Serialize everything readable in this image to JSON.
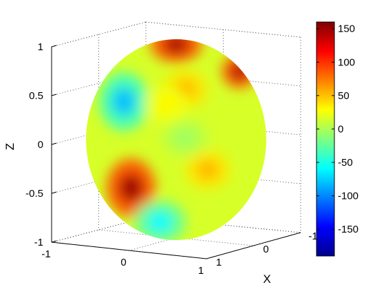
{
  "chart_data": {
    "type": "surface",
    "title": "",
    "xlabel": "X",
    "ylabel": "",
    "zlabel": "Z",
    "z_axis": {
      "range": [
        -1,
        1
      ],
      "ticks": [
        {
          "value": 1,
          "label": "1"
        },
        {
          "value": 0.5,
          "label": "0.5"
        },
        {
          "value": 0,
          "label": "0"
        },
        {
          "value": -0.5,
          "label": "-0.5"
        },
        {
          "value": -1,
          "label": "-1"
        }
      ]
    },
    "y_axis": {
      "range": [
        -1,
        1
      ],
      "ticks": [
        {
          "value": -1,
          "label": "-1"
        },
        {
          "value": 0,
          "label": "0"
        },
        {
          "value": 1,
          "label": "1"
        }
      ]
    },
    "x_axis": {
      "range": [
        -1,
        1
      ],
      "ticks": [
        {
          "value": 1,
          "label": "1"
        },
        {
          "value": 0,
          "label": "0"
        },
        {
          "value": -1,
          "label": "-1"
        }
      ]
    },
    "colorbar": {
      "range": [
        -190,
        160
      ],
      "colormap": "jet",
      "ticks": [
        {
          "value": 150,
          "label": "150"
        },
        {
          "value": 100,
          "label": "100"
        },
        {
          "value": 50,
          "label": "50"
        },
        {
          "value": 0,
          "label": "0"
        },
        {
          "value": -50,
          "label": "-50"
        },
        {
          "value": -100,
          "label": "-100"
        },
        {
          "value": -150,
          "label": "-150"
        }
      ]
    },
    "surface": {
      "shape": "unit sphere",
      "base_value": 15,
      "features": [
        {
          "u": -0.5,
          "v": -0.48,
          "value": 150
        },
        {
          "u": 0.0,
          "v": 0.95,
          "value": 150
        },
        {
          "u": 0.7,
          "v": 0.68,
          "value": 150
        },
        {
          "u": -0.58,
          "v": 0.38,
          "value": -80
        },
        {
          "u": -0.18,
          "v": -0.82,
          "value": -60
        },
        {
          "u": 0.1,
          "v": 0.02,
          "value": -5
        },
        {
          "u": 0.1,
          "v": 0.5,
          "value": 55
        },
        {
          "u": 0.35,
          "v": -0.3,
          "value": 55
        },
        {
          "u": -0.1,
          "v": 0.35,
          "value": 30
        }
      ]
    }
  }
}
